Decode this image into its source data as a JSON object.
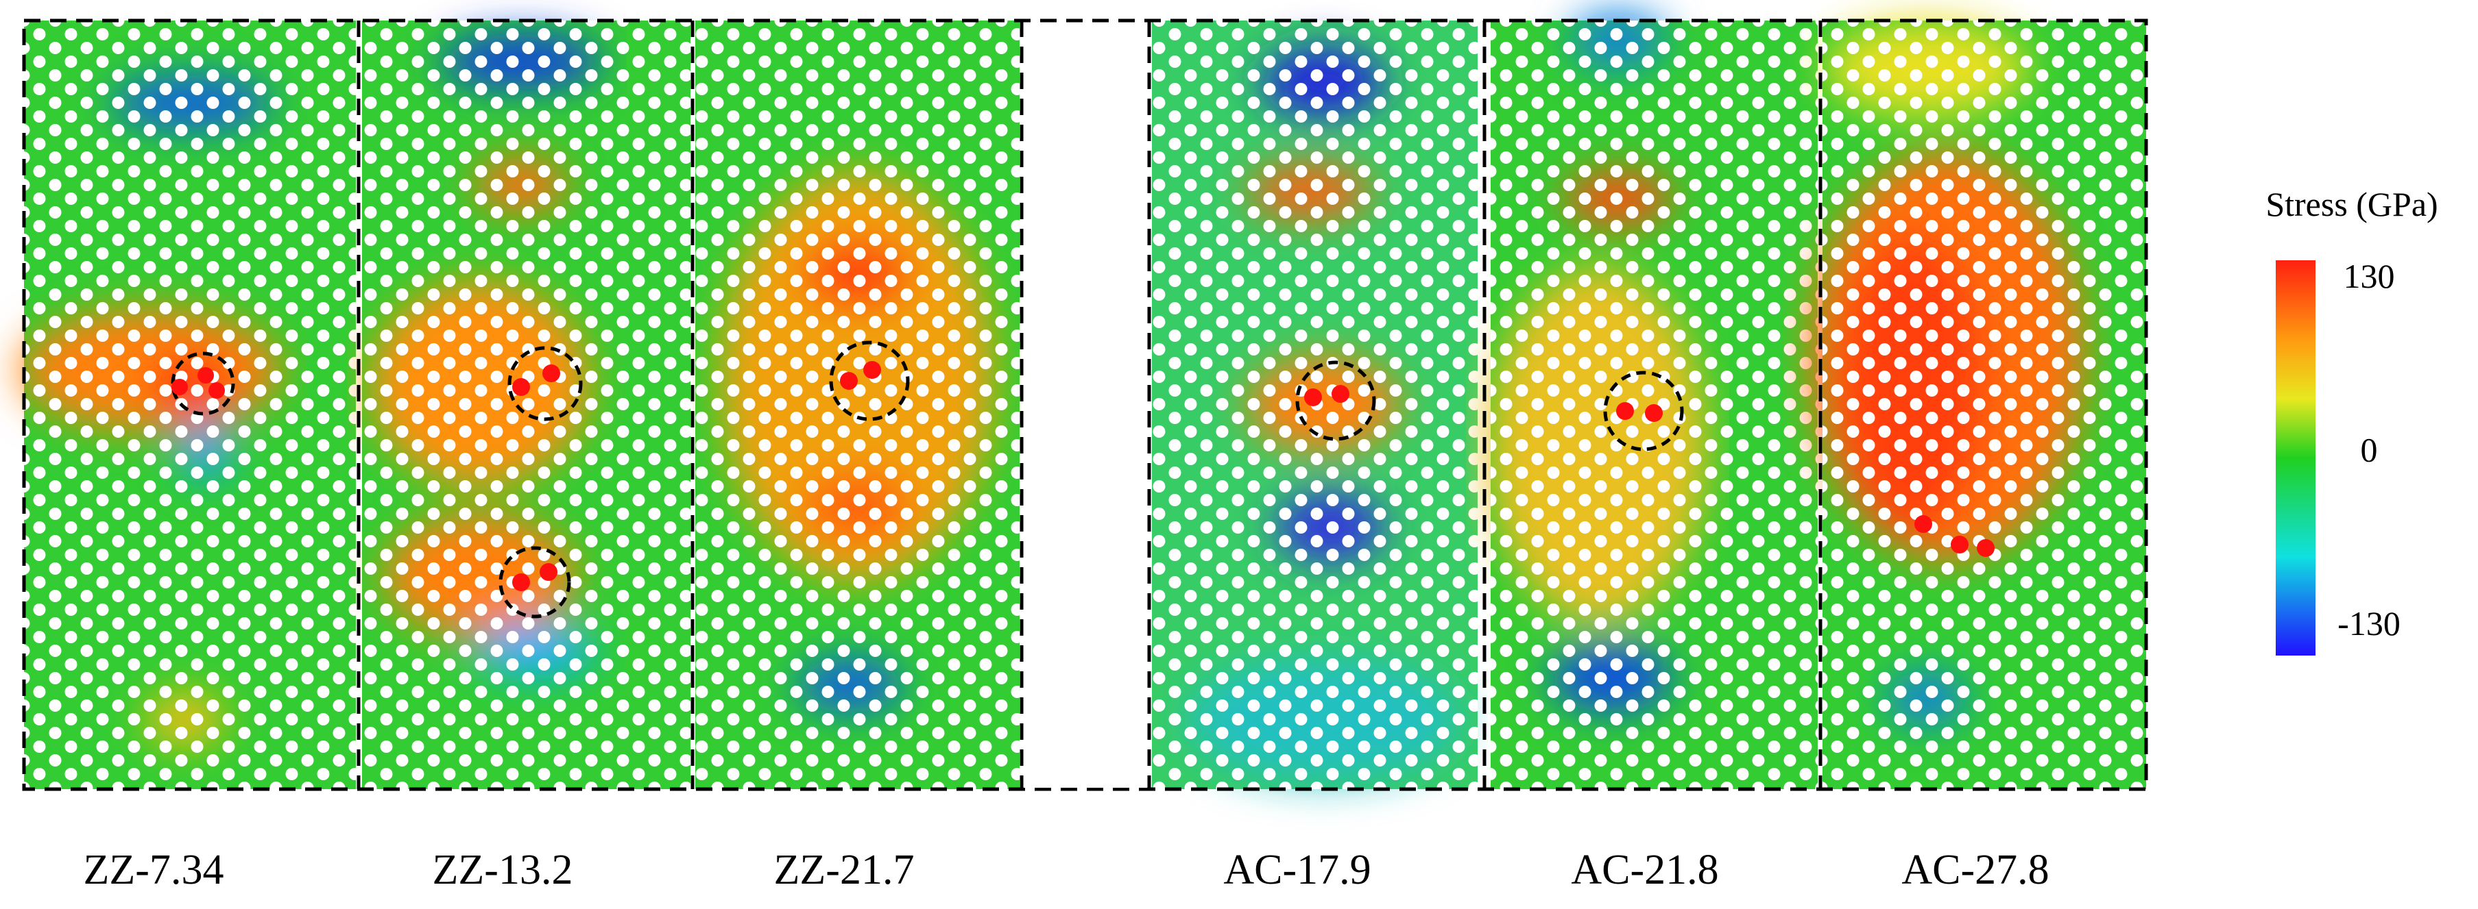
{
  "panels": [
    {
      "label": "ZZ-7.34"
    },
    {
      "label": "ZZ-13.2"
    },
    {
      "label": "ZZ-21.7"
    },
    {
      "label": "AC-17.9"
    },
    {
      "label": "AC-21.8"
    },
    {
      "label": "AC-27.8"
    }
  ],
  "colorbar": {
    "title": "Stress (GPa)",
    "ticks": [
      130,
      0,
      -130
    ]
  }
}
